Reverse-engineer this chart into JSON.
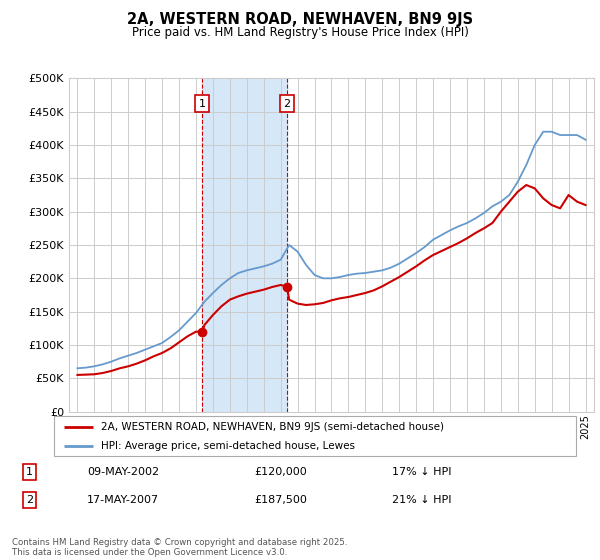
{
  "title": "2A, WESTERN ROAD, NEWHAVEN, BN9 9JS",
  "subtitle": "Price paid vs. HM Land Registry's House Price Index (HPI)",
  "legend_red": "2A, WESTERN ROAD, NEWHAVEN, BN9 9JS (semi-detached house)",
  "legend_blue": "HPI: Average price, semi-detached house, Lewes",
  "footer": "Contains HM Land Registry data © Crown copyright and database right 2025.\nThis data is licensed under the Open Government Licence v3.0.",
  "sale1_label": "1",
  "sale1_date": "09-MAY-2002",
  "sale1_price": "£120,000",
  "sale1_hpi": "17% ↓ HPI",
  "sale2_label": "2",
  "sale2_date": "17-MAY-2007",
  "sale2_price": "£187,500",
  "sale2_hpi": "21% ↓ HPI",
  "ylim": [
    0,
    500000
  ],
  "yticks": [
    0,
    50000,
    100000,
    150000,
    200000,
    250000,
    300000,
    350000,
    400000,
    450000,
    500000
  ],
  "sale1_x": 2002.37,
  "sale2_x": 2007.37,
  "shade_color": "#d6e8f7",
  "red_color": "#cc0000",
  "blue_color": "#6699cc",
  "background_color": "#ffffff",
  "grid_color": "#cccccc",
  "hpi_years": [
    1995,
    1995.5,
    1996,
    1996.5,
    1997,
    1997.5,
    1998,
    1998.5,
    1999,
    1999.5,
    2000,
    2000.5,
    2001,
    2001.5,
    2002,
    2002.5,
    2003,
    2003.5,
    2004,
    2004.5,
    2005,
    2005.5,
    2006,
    2006.5,
    2007,
    2007.5,
    2008,
    2008.5,
    2009,
    2009.5,
    2010,
    2010.5,
    2011,
    2011.5,
    2012,
    2012.5,
    2013,
    2013.5,
    2014,
    2014.5,
    2015,
    2015.5,
    2016,
    2016.5,
    2017,
    2017.5,
    2018,
    2018.5,
    2019,
    2019.5,
    2020,
    2020.5,
    2021,
    2021.5,
    2022,
    2022.5,
    2023,
    2023.5,
    2024,
    2024.5,
    2025
  ],
  "hpi_vals": [
    65000,
    66000,
    68000,
    71000,
    75000,
    80000,
    84000,
    88000,
    93000,
    98000,
    103000,
    112000,
    122000,
    135000,
    148000,
    165000,
    178000,
    190000,
    200000,
    208000,
    212000,
    215000,
    218000,
    222000,
    228000,
    250000,
    240000,
    220000,
    205000,
    200000,
    200000,
    202000,
    205000,
    207000,
    208000,
    210000,
    212000,
    216000,
    222000,
    230000,
    238000,
    247000,
    258000,
    265000,
    272000,
    278000,
    283000,
    290000,
    298000,
    308000,
    315000,
    325000,
    345000,
    370000,
    400000,
    420000,
    420000,
    415000,
    415000,
    415000,
    408000
  ],
  "red_years": [
    1995,
    1995.5,
    1996,
    1996.5,
    1997,
    1997.5,
    1998,
    1998.5,
    1999,
    1999.5,
    2000,
    2000.5,
    2001,
    2001.5,
    2002,
    2002.37,
    2002.5,
    2003,
    2003.5,
    2004,
    2004.5,
    2005,
    2005.5,
    2006,
    2006.5,
    2007,
    2007.37,
    2007.5,
    2008,
    2008.5,
    2009,
    2009.5,
    2010,
    2010.5,
    2011,
    2011.5,
    2012,
    2012.5,
    2013,
    2013.5,
    2014,
    2014.5,
    2015,
    2015.5,
    2016,
    2016.5,
    2017,
    2017.5,
    2018,
    2018.5,
    2019,
    2019.5,
    2020,
    2020.5,
    2021,
    2021.5,
    2022,
    2022.5,
    2023,
    2023.5,
    2024,
    2024.5,
    2025
  ],
  "red_vals": [
    55000,
    55500,
    56000,
    58000,
    61000,
    65000,
    68000,
    72000,
    77000,
    83000,
    88000,
    95000,
    104000,
    113000,
    120000,
    120000,
    130000,
    145000,
    158000,
    168000,
    173000,
    177000,
    180000,
    183000,
    187000,
    190000,
    187500,
    168000,
    162000,
    160000,
    161000,
    163000,
    167000,
    170000,
    172000,
    175000,
    178000,
    182000,
    188000,
    195000,
    202000,
    210000,
    218000,
    227000,
    235000,
    241000,
    247000,
    253000,
    260000,
    268000,
    275000,
    283000,
    300000,
    315000,
    330000,
    340000,
    335000,
    320000,
    310000,
    305000,
    325000,
    315000,
    310000
  ]
}
